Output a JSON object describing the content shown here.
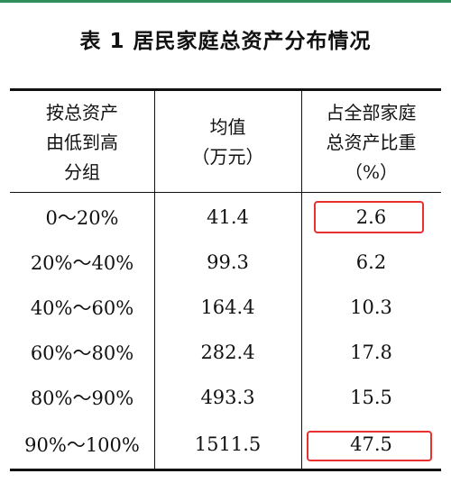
{
  "title": "表 1  居民家庭总资产分布情况",
  "header": {
    "col1": [
      "按总资产",
      "由低到高",
      "分组"
    ],
    "col2": [
      "均值",
      "（万元）"
    ],
    "col3": [
      "占全部家庭",
      "总资产比重",
      "（%）"
    ]
  },
  "rows": [
    {
      "group": "0～20%",
      "mean": "41.4",
      "share": "2.6",
      "highlight": true
    },
    {
      "group": "20%～40%",
      "mean": "99.3",
      "share": "6.2",
      "highlight": false
    },
    {
      "group": "40%～60%",
      "mean": "164.4",
      "share": "10.3",
      "highlight": false
    },
    {
      "group": "60%～80%",
      "mean": "282.4",
      "share": "17.8",
      "highlight": false
    },
    {
      "group": "80%～90%",
      "mean": "493.3",
      "share": "15.5",
      "highlight": false
    },
    {
      "group": "90%～100%",
      "mean": "1511.5",
      "share": "47.5",
      "highlight": true
    }
  ],
  "colors": {
    "accent_bar": "#2f8f5a",
    "highlight": "#e8302f",
    "rule": "#111111"
  }
}
